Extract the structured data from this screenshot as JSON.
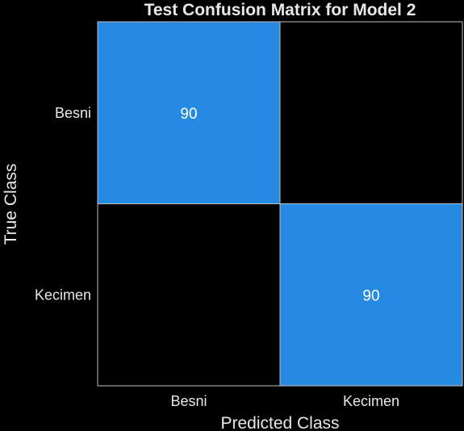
{
  "colors": {
    "background": "#000000",
    "text": "#e8e8e8",
    "high": "#278ae2",
    "low": "#000000",
    "border": "#bfbfbf"
  },
  "chart_data": {
    "type": "heatmap",
    "title": "Test Confusion Matrix for Model 2",
    "xlabel": "Predicted Class",
    "ylabel": "True Class",
    "x_categories": [
      "Besni",
      "Kecimen"
    ],
    "y_categories": [
      "Besni",
      "Kecimen"
    ],
    "matrix": [
      [
        90,
        0
      ],
      [
        0,
        90
      ]
    ],
    "annotations": [
      [
        "90",
        ""
      ],
      [
        "",
        "90"
      ]
    ],
    "grid": false,
    "legend": "none"
  }
}
